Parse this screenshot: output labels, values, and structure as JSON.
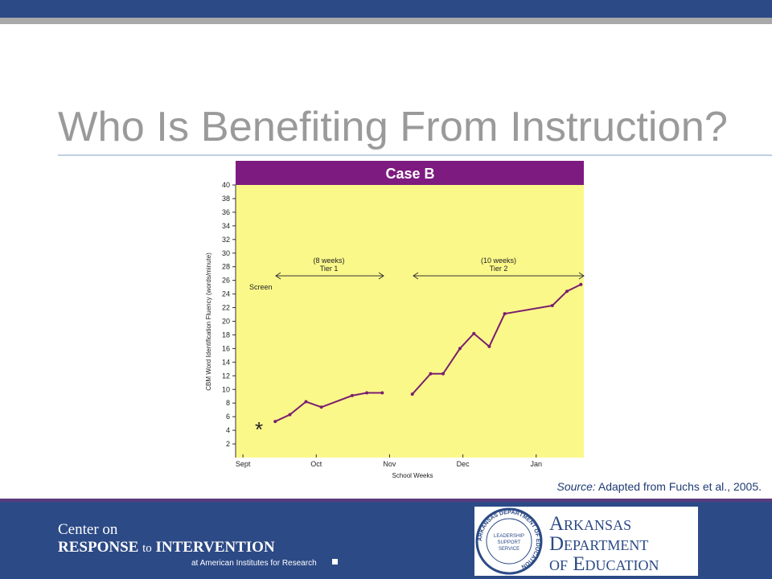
{
  "slide": {
    "title": "Who Is Benefiting From Instruction?",
    "source_label": "Source:",
    "source_text": "Adapted from Fuchs et al., 2005.",
    "footer": {
      "line1": "Center on",
      "line2a": "RESPONSE",
      "line2b": "to",
      "line2c": "INTERVENTION",
      "line3": "at American Institutes for Research"
    },
    "logo": {
      "line1": "Arkansas",
      "line2": "Department",
      "line3": "of Education",
      "seal_center": [
        "LEADERSHIP",
        "SUPPORT",
        "SERVICE"
      ],
      "seal_ring": "ARKANSAS DEPARTMENT OF EDUCATION"
    }
  },
  "chart_data": {
    "type": "line",
    "title": "Case B",
    "x_label": "School Weeks",
    "y_label": "CBM Word Identification Fluency (words/minute)",
    "xlim": [
      -0.1,
      4.65
    ],
    "xticks": [
      {
        "value": 0,
        "label": "Sept"
      },
      {
        "value": 1,
        "label": "Oct"
      },
      {
        "value": 2,
        "label": "Nov"
      },
      {
        "value": 3,
        "label": "Dec"
      },
      {
        "value": 4,
        "label": "Jan"
      }
    ],
    "ylim": [
      0,
      40
    ],
    "yticks": [
      2,
      4,
      6,
      8,
      10,
      12,
      14,
      16,
      18,
      20,
      22,
      24,
      26,
      28,
      30,
      32,
      34,
      36,
      38,
      40
    ],
    "series": [
      {
        "color": "#7a1f6e",
        "x": [
          0.44,
          0.64,
          0.86,
          1.07,
          1.49,
          1.69,
          1.9
        ],
        "values": [
          5.3,
          6.3,
          8.2,
          7.4,
          9.1,
          9.5,
          9.5
        ]
      },
      {
        "color": "#7a1f6e",
        "x": [
          2.31,
          2.56,
          2.73,
          2.96,
          3.15,
          3.36,
          3.57,
          4.22,
          4.42,
          4.61
        ],
        "values": [
          9.3,
          12.3,
          12.3,
          16,
          18.2,
          16.3,
          21.1,
          22.3,
          24.4,
          25.4
        ]
      }
    ],
    "annotations": {
      "tier1_weeks": "(8 weeks)",
      "tier1": "Tier 1",
      "tier2_weeks": "(10 weeks)",
      "tier2": "Tier 2",
      "screen": "Screen",
      "star": "*"
    }
  }
}
